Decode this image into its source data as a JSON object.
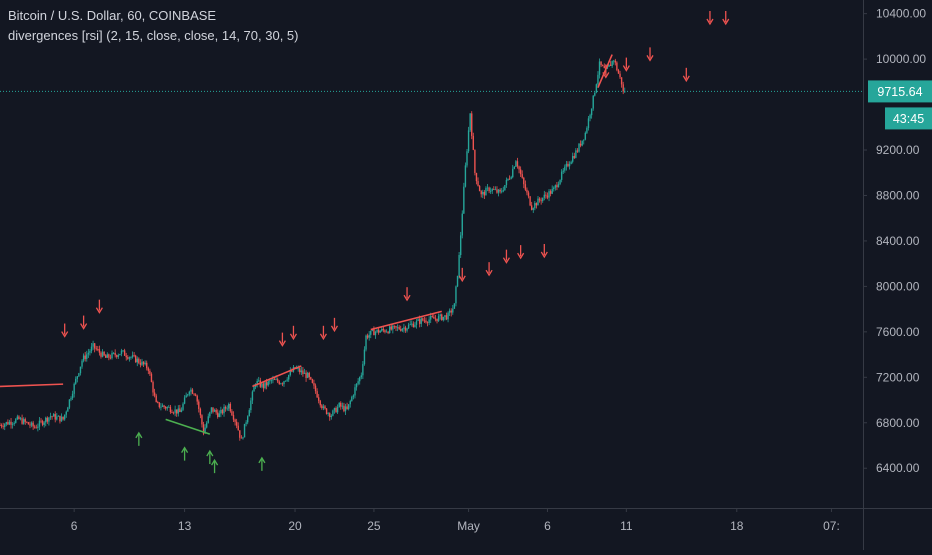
{
  "header": {
    "symbol_line": "Bitcoin / U.S. Dollar, 60, COINBASE",
    "indicator_line": "divergences [rsi] (2, 15, close, close, 14, 70, 30, 5)"
  },
  "price_tag": "9715.64",
  "countdown_tag": "43:45",
  "colors": {
    "background": "#131722",
    "axis_text": "#b2b5be",
    "axis_border": "#363a45",
    "candle_up": "#26a69a",
    "candle_down": "#ef5350",
    "price_line": "#26a69a",
    "divergence_bear": "#ef5350",
    "divergence_bull": "#4caf50"
  },
  "chart_data": {
    "type": "candlestick",
    "y_axis": {
      "ticks": [
        "10400.00",
        "10000.00",
        "9200.00",
        "8800.00",
        "8400.00",
        "8000.00",
        "7600.00",
        "7200.00",
        "6800.00",
        "6400.00"
      ],
      "tick_values": [
        10400,
        10000,
        9200,
        8800,
        8400,
        8000,
        7600,
        7200,
        6800,
        6400
      ],
      "ylim": [
        6050,
        10520
      ]
    },
    "x_axis": {
      "ticks": [
        "6",
        "13",
        "20",
        "25",
        "May",
        "6",
        "11",
        "18",
        "07:"
      ],
      "tick_days": [
        5,
        12,
        19,
        24,
        30,
        35,
        40,
        47,
        53
      ],
      "xlim": [
        0.3,
        55.0
      ]
    },
    "current_price": 9715.64,
    "price_path": [
      [
        0.3,
        6780
      ],
      [
        1.5,
        6830
      ],
      [
        2.5,
        6760
      ],
      [
        3.5,
        6860
      ],
      [
        4.3,
        6830
      ],
      [
        4.8,
        7040
      ],
      [
        5.5,
        7350
      ],
      [
        6.2,
        7470
      ],
      [
        7.0,
        7370
      ],
      [
        8.0,
        7420
      ],
      [
        9.0,
        7350
      ],
      [
        9.7,
        7280
      ],
      [
        10.2,
        6960
      ],
      [
        11.0,
        6930
      ],
      [
        11.7,
        6890
      ],
      [
        12.3,
        7100
      ],
      [
        12.7,
        7060
      ],
      [
        13.2,
        6720
      ],
      [
        13.7,
        6920
      ],
      [
        14.2,
        6870
      ],
      [
        14.8,
        6960
      ],
      [
        15.3,
        6790
      ],
      [
        15.6,
        6640
      ],
      [
        16.0,
        6880
      ],
      [
        16.5,
        7160
      ],
      [
        17.0,
        7120
      ],
      [
        17.5,
        7170
      ],
      [
        18.2,
        7160
      ],
      [
        19.0,
        7280
      ],
      [
        19.8,
        7210
      ],
      [
        20.3,
        7080
      ],
      [
        20.8,
        6920
      ],
      [
        21.3,
        6870
      ],
      [
        21.8,
        6950
      ],
      [
        22.3,
        6910
      ],
      [
        22.8,
        7100
      ],
      [
        23.2,
        7230
      ],
      [
        23.5,
        7560
      ],
      [
        24.0,
        7600
      ],
      [
        25.0,
        7620
      ],
      [
        26.0,
        7640
      ],
      [
        27.0,
        7700
      ],
      [
        28.0,
        7720
      ],
      [
        28.7,
        7740
      ],
      [
        29.1,
        7830
      ],
      [
        29.4,
        8260
      ],
      [
        29.8,
        9050
      ],
      [
        30.1,
        9530
      ],
      [
        30.4,
        9000
      ],
      [
        30.8,
        8800
      ],
      [
        31.3,
        8860
      ],
      [
        32.0,
        8820
      ],
      [
        32.7,
        8990
      ],
      [
        33.0,
        9120
      ],
      [
        33.5,
        8890
      ],
      [
        34.0,
        8700
      ],
      [
        34.6,
        8770
      ],
      [
        35.4,
        8850
      ],
      [
        35.9,
        8980
      ],
      [
        36.4,
        9100
      ],
      [
        36.9,
        9200
      ],
      [
        37.4,
        9350
      ],
      [
        37.9,
        9650
      ],
      [
        38.3,
        9950
      ],
      [
        38.7,
        9890
      ],
      [
        39.2,
        10000
      ],
      [
        39.6,
        9830
      ],
      [
        39.9,
        9715.64
      ]
    ],
    "divergence_lines": [
      {
        "kind": "bearish",
        "from": [
          0.3,
          7120
        ],
        "to": [
          4.3,
          7140
        ]
      },
      {
        "kind": "bullish",
        "from": [
          10.8,
          6830
        ],
        "to": [
          13.6,
          6700
        ]
      },
      {
        "kind": "bearish",
        "from": [
          16.3,
          7120
        ],
        "to": [
          19.4,
          7300
        ]
      },
      {
        "kind": "bearish",
        "from": [
          23.8,
          7620
        ],
        "to": [
          28.3,
          7780
        ]
      },
      {
        "kind": "bearish",
        "from": [
          38.2,
          9750
        ],
        "to": [
          39.1,
          10040
        ]
      }
    ],
    "bear_signals": [
      [
        4.4,
        7550
      ],
      [
        5.6,
        7620
      ],
      [
        6.6,
        7760
      ],
      [
        18.2,
        7470
      ],
      [
        18.9,
        7530
      ],
      [
        20.8,
        7530
      ],
      [
        21.5,
        7600
      ],
      [
        26.1,
        7870
      ],
      [
        29.6,
        8040
      ],
      [
        31.3,
        8090
      ],
      [
        32.4,
        8200
      ],
      [
        33.3,
        8240
      ],
      [
        34.8,
        8250
      ],
      [
        38.7,
        9830
      ],
      [
        40.0,
        9890
      ],
      [
        41.5,
        9980
      ],
      [
        43.8,
        9800
      ],
      [
        45.3,
        10300
      ],
      [
        46.3,
        10300
      ]
    ],
    "bull_signals": [
      [
        9.1,
        6720
      ],
      [
        12.0,
        6590
      ],
      [
        13.6,
        6560
      ],
      [
        13.9,
        6480
      ],
      [
        16.9,
        6500
      ]
    ]
  }
}
